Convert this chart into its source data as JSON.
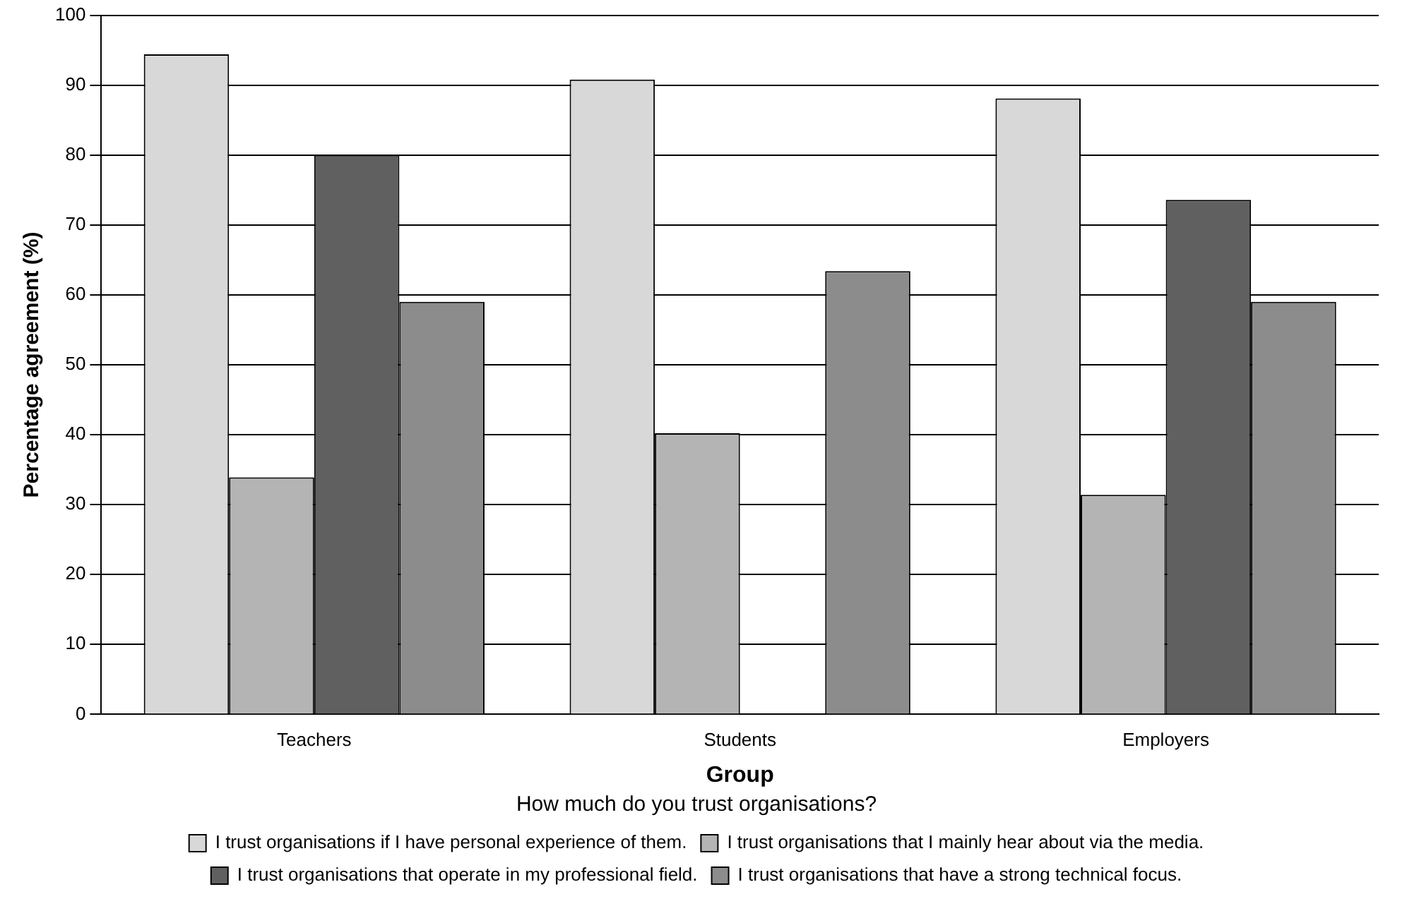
{
  "chart_data": {
    "type": "bar",
    "xlabel": "Group",
    "ylabel": "Percentage agreement (%)",
    "legend_title": "How much do you trust organisations?",
    "categories": [
      "Teachers",
      "Students",
      "Employers"
    ],
    "series": [
      {
        "name": "I trust organisations if I have personal experience of them.",
        "color": "#d8d8d8",
        "values": [
          94.4,
          90.8,
          88.1
        ]
      },
      {
        "name": "I trust organisations that I mainly hear about via the media.",
        "color": "#b4b4b4",
        "values": [
          33.9,
          40.2,
          31.4
        ]
      },
      {
        "name": "I trust organisations that operate in my professional field.",
        "color": "#606060",
        "values": [
          80,
          0,
          73.6
        ]
      },
      {
        "name": "I trust organisations that have a strong technical focus.",
        "color": "#8c8c8c",
        "values": [
          59,
          63.4,
          59
        ]
      }
    ],
    "ylim": [
      0,
      100
    ],
    "yticks": [
      0,
      10,
      20,
      30,
      40,
      50,
      60,
      70,
      80,
      90,
      100
    ],
    "grid": "y",
    "legend": "bottom"
  }
}
